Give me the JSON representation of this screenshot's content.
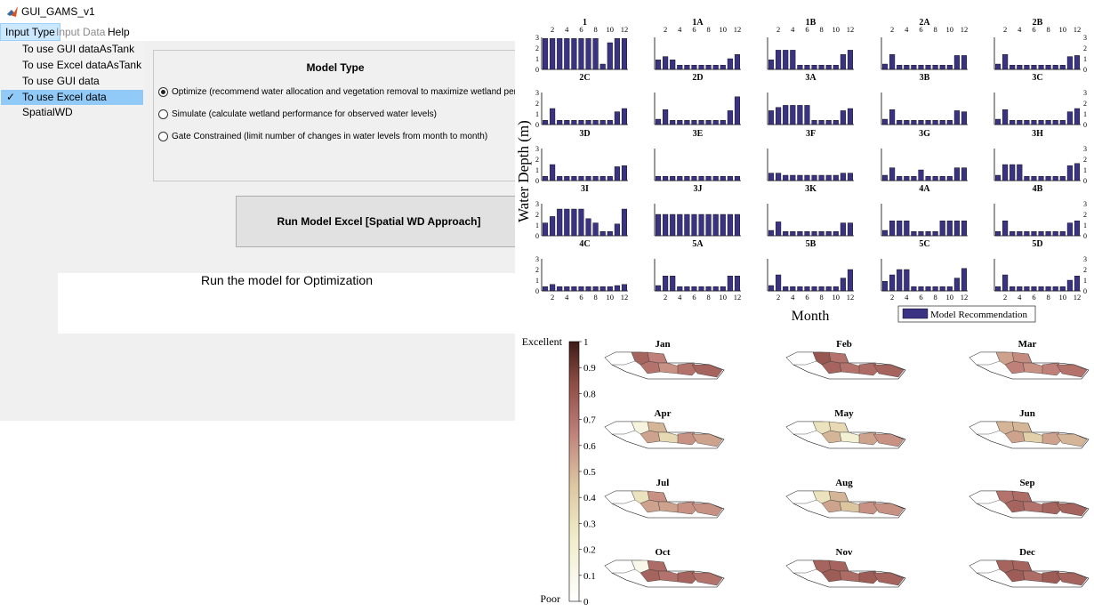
{
  "window": {
    "title": "GUI_GAMS_v1"
  },
  "menu": {
    "items": [
      "Input Type",
      "Input Data",
      "Help"
    ]
  },
  "dropdown": {
    "items": [
      "To use GUI dataAsTank",
      "To use Excel dataAsTank",
      "To use GUI data SpatialWD",
      "To use Excel data SpatialWD"
    ],
    "checked_index": 3
  },
  "model_type": {
    "title": "Model Type",
    "options": [
      "Optimize (recommend water allocation and vegetation removal to maximize wetland performance)",
      "Simulate (calculate wetland performance for observed water levels)",
      "Gate Constrained (limit number of changes in water levels from month to month)"
    ],
    "selected_index": 0
  },
  "run_button": {
    "label": "Run Model Excel [Spatial WD Approach]"
  },
  "status": {
    "text": "Run the model for Optimization"
  },
  "colors": {
    "bar": "#3a3383",
    "map_low": "#ffffff",
    "map_mid": "#e9e2b4",
    "map_high": "#5a2a24"
  },
  "chart_data": [
    {
      "type": "bar",
      "ylabel": "Water Depth (m)",
      "xlabel": "Month",
      "legend": [
        "Model Recommendation"
      ],
      "legend_position": "bottom-right",
      "x_ticks": [
        "2",
        "4",
        "6",
        "8",
        "10",
        "12"
      ],
      "y_ticks": [
        "0",
        "1",
        "2",
        "3"
      ],
      "ylim": [
        0,
        3
      ],
      "panels": [
        {
          "title": "1",
          "values": [
            2.9,
            2.9,
            2.9,
            2.9,
            2.9,
            2.9,
            2.9,
            2.9,
            0.5,
            2.5,
            2.9,
            2.9
          ]
        },
        {
          "title": "1A",
          "values": [
            0.9,
            1.2,
            0.9,
            0.4,
            0.4,
            0.4,
            0.4,
            0.4,
            0.4,
            0.4,
            1.0,
            1.4
          ]
        },
        {
          "title": "1B",
          "values": [
            0.9,
            1.8,
            1.8,
            1.8,
            0.4,
            0.4,
            0.4,
            0.4,
            0.4,
            0.4,
            1.4,
            1.8
          ]
        },
        {
          "title": "2A",
          "values": [
            0.5,
            1.4,
            0.4,
            0.4,
            0.4,
            0.4,
            0.4,
            0.4,
            0.4,
            0.4,
            1.3,
            1.3
          ]
        },
        {
          "title": "2B",
          "values": [
            0.5,
            1.4,
            0.4,
            0.4,
            0.4,
            0.4,
            0.4,
            0.4,
            0.4,
            0.4,
            1.2,
            1.3
          ]
        },
        {
          "title": "2C",
          "values": [
            0.4,
            1.5,
            0.4,
            0.4,
            0.4,
            0.4,
            0.4,
            0.4,
            0.4,
            0.4,
            1.2,
            1.5
          ]
        },
        {
          "title": "2D",
          "values": [
            0.5,
            1.4,
            0.4,
            0.4,
            0.4,
            0.4,
            0.4,
            0.4,
            0.4,
            0.4,
            1.3,
            2.6
          ]
        },
        {
          "title": "3A",
          "values": [
            1.3,
            1.6,
            1.8,
            1.8,
            1.8,
            1.8,
            0.4,
            0.4,
            0.4,
            0.4,
            1.3,
            1.5
          ]
        },
        {
          "title": "3B",
          "values": [
            0.5,
            1.4,
            0.4,
            0.4,
            0.4,
            0.4,
            0.4,
            0.4,
            0.4,
            0.4,
            1.3,
            1.2
          ]
        },
        {
          "title": "3C",
          "values": [
            0.5,
            1.4,
            0.4,
            0.4,
            0.4,
            0.4,
            0.4,
            0.4,
            0.4,
            0.4,
            1.2,
            1.5
          ]
        },
        {
          "title": "3D",
          "values": [
            0.4,
            1.5,
            0.4,
            0.4,
            0.4,
            0.4,
            0.4,
            0.4,
            0.4,
            0.4,
            1.3,
            1.4
          ]
        },
        {
          "title": "3E",
          "values": [
            0.4,
            0.4,
            0.4,
            0.4,
            0.4,
            0.4,
            0.4,
            0.4,
            0.4,
            0.4,
            0.4,
            0.4
          ]
        },
        {
          "title": "3F",
          "values": [
            0.7,
            0.7,
            0.5,
            0.5,
            0.5,
            0.5,
            0.5,
            0.5,
            0.5,
            0.5,
            0.7,
            0.7
          ]
        },
        {
          "title": "3G",
          "values": [
            0.5,
            1.2,
            0.4,
            0.4,
            0.4,
            1.0,
            0.4,
            0.4,
            0.4,
            0.4,
            1.2,
            1.2
          ]
        },
        {
          "title": "3H",
          "values": [
            0.5,
            1.5,
            1.5,
            1.5,
            0.4,
            0.4,
            0.4,
            0.4,
            0.4,
            0.4,
            1.4,
            1.6
          ]
        },
        {
          "title": "3I",
          "values": [
            1.2,
            1.8,
            2.5,
            2.5,
            2.5,
            2.5,
            1.6,
            1.2,
            0.4,
            0.4,
            1.1,
            2.5
          ]
        },
        {
          "title": "3J",
          "values": [
            2.0,
            2.0,
            2.0,
            2.0,
            2.0,
            2.0,
            2.0,
            2.0,
            2.0,
            2.0,
            2.0,
            2.0
          ]
        },
        {
          "title": "3K",
          "values": [
            0.5,
            1.3,
            0.4,
            0.4,
            0.4,
            0.4,
            0.4,
            0.4,
            0.4,
            0.4,
            1.2,
            1.2
          ]
        },
        {
          "title": "4A",
          "values": [
            0.5,
            1.4,
            1.4,
            1.4,
            0.4,
            0.4,
            0.4,
            0.4,
            1.4,
            1.4,
            1.4,
            1.4
          ]
        },
        {
          "title": "4B",
          "values": [
            0.4,
            1.4,
            0.4,
            0.4,
            0.4,
            0.4,
            0.4,
            0.4,
            0.4,
            0.4,
            1.2,
            1.4
          ]
        },
        {
          "title": "4C",
          "values": [
            0.4,
            0.6,
            0.4,
            0.4,
            0.4,
            0.4,
            0.4,
            0.4,
            0.4,
            0.4,
            0.5,
            0.6
          ]
        },
        {
          "title": "5A",
          "values": [
            0.5,
            1.4,
            1.4,
            0.4,
            0.4,
            0.4,
            0.4,
            0.4,
            0.4,
            0.4,
            1.4,
            1.4
          ]
        },
        {
          "title": "5B",
          "values": [
            0.5,
            1.5,
            0.4,
            0.4,
            0.4,
            0.4,
            0.4,
            0.4,
            0.4,
            0.4,
            1.2,
            2.0
          ]
        },
        {
          "title": "5C",
          "values": [
            0.9,
            1.5,
            2.0,
            2.0,
            0.4,
            0.4,
            0.4,
            0.4,
            0.4,
            0.4,
            1.2,
            2.1
          ]
        },
        {
          "title": "5D",
          "values": [
            0.4,
            1.5,
            0.4,
            0.4,
            0.4,
            0.4,
            0.4,
            0.4,
            0.4,
            0.4,
            1.0,
            1.4
          ]
        }
      ]
    },
    {
      "type": "heatmap",
      "colorbar_ticks": [
        "0",
        "0.1",
        "0.2",
        "0.3",
        "0.4",
        "0.5",
        "0.6",
        "0.7",
        "0.8",
        "0.9",
        "1"
      ],
      "colorbar_low_label": "Poor",
      "colorbar_high_label": "Excellent",
      "range": [
        0,
        1
      ],
      "months": [
        "Jan",
        "Feb",
        "Mar",
        "Apr",
        "May",
        "Jun",
        "Jul",
        "Aug",
        "Sep",
        "Oct",
        "Nov",
        "Dec"
      ],
      "month_values": [
        [
          0.0,
          0.75,
          0.7,
          0.65,
          0.6,
          0.7,
          0.75
        ],
        [
          0.0,
          0.8,
          0.75,
          0.7,
          0.7,
          0.72,
          0.75
        ],
        [
          0.0,
          0.55,
          0.65,
          0.62,
          0.6,
          0.65,
          0.7
        ],
        [
          0.0,
          0.15,
          0.55,
          0.5,
          0.35,
          0.6,
          0.55
        ],
        [
          0.0,
          0.3,
          0.5,
          0.35,
          0.2,
          0.55,
          0.6
        ],
        [
          0.0,
          0.5,
          0.55,
          0.5,
          0.4,
          0.55,
          0.5
        ],
        [
          0.0,
          0.3,
          0.55,
          0.6,
          0.55,
          0.6,
          0.6
        ],
        [
          0.0,
          0.3,
          0.55,
          0.5,
          0.45,
          0.6,
          0.6
        ],
        [
          0.0,
          0.7,
          0.75,
          0.72,
          0.7,
          0.75,
          0.75
        ],
        [
          0.0,
          0.1,
          0.75,
          0.72,
          0.7,
          0.75,
          0.7
        ],
        [
          0.0,
          0.75,
          0.78,
          0.75,
          0.72,
          0.78,
          0.75
        ],
        [
          0.0,
          0.75,
          0.78,
          0.75,
          0.72,
          0.78,
          0.75
        ]
      ]
    }
  ]
}
